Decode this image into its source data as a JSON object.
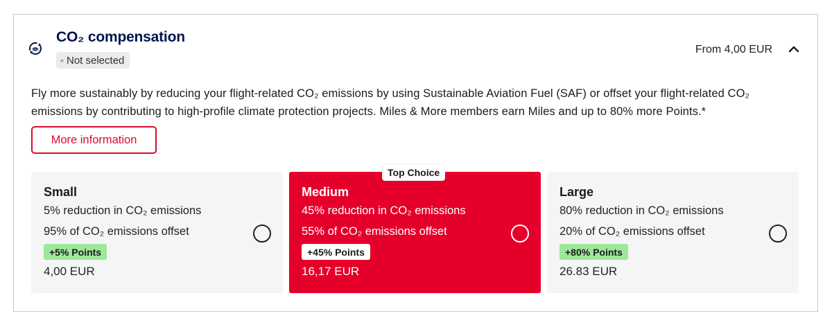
{
  "header": {
    "title": "CO₂ compensation",
    "status": "Not selected",
    "status_icon": "unselected-dots-icon",
    "price_from": "From 4,00 EUR",
    "expand_icon": "chevron-up-icon",
    "section_icon": "co2-recycle-icon"
  },
  "description": "Fly more sustainably by reducing your flight-related CO₂ emissions by using Sustainable Aviation Fuel (SAF) or offset your flight-related CO₂ emissions by contributing to high-profile climate protection projects. Miles & More members earn Miles and up to 80% more Points.*",
  "more_info_label": "More information",
  "options": [
    {
      "name": "Small",
      "reduction": "5% reduction in CO₂ emissions",
      "offset": "95% of CO₂ emissions offset",
      "points": "+5% Points",
      "price": "4,00 EUR",
      "selected": false
    },
    {
      "name": "Medium",
      "badge": "Top Choice",
      "reduction": "45% reduction in CO₂ emissions",
      "offset": "55% of CO₂ emissions offset",
      "points": "+45% Points",
      "price": "16,17 EUR",
      "selected": false
    },
    {
      "name": "Large",
      "reduction": "80% reduction in CO₂ emissions",
      "offset": "20% of CO₂ emissions offset",
      "points": "+80% Points",
      "price": "26.83  EUR",
      "selected": false
    }
  ],
  "colors": {
    "accent_red": "#e4002b",
    "button_red": "#d40e2e",
    "title_navy": "#05164d",
    "points_green": "#9de69a",
    "card_grey": "#f5f5f5"
  }
}
